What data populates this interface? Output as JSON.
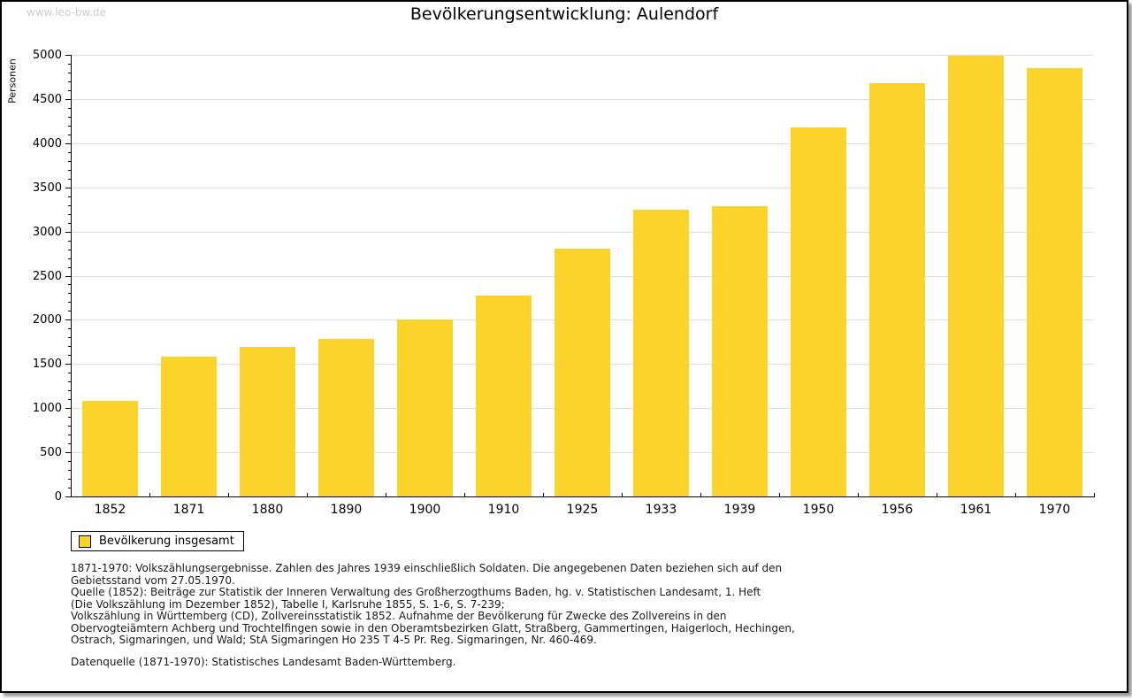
{
  "page": {
    "watermark": "www.leo-bw.de",
    "title": "Bevölkerungsentwicklung: Aulendorf"
  },
  "legend": {
    "label": "Bevölkerung insgesamt",
    "swatch_color": "#fcd32a"
  },
  "colors": {
    "bar": "#fcd32a",
    "grid": "#dddddd",
    "axis": "#000000",
    "watermark": "#cccccc"
  },
  "footnotes": [
    "1871-1970: Volkszählungsergebnisse. Zahlen des Jahres 1939 einschließlich Soldaten. Die angegebenen Daten beziehen sich auf den",
    "Gebietsstand vom 27.05.1970.",
    "Quelle (1852): Beiträge zur Statistik der Inneren Verwaltung des Großherzogthums Baden, hg. v. Statistischen Landesamt, 1. Heft",
    "(Die Volkszählung im Dezember 1852), Tabelle I, Karlsruhe 1855, S. 1-6, S. 7-239;",
    "Volkszählung in Württemberg (CD), Zollvereinsstatistik 1852. Aufnahme der Bevölkerung für Zwecke des Zollvereins in den",
    "Obervogteiämtern Achberg und Trochtelfingen sowie in den Oberamtsbezirken Glatt, Straßberg, Gammertingen, Haigerloch, Hechingen,",
    "Ostrach, Sigmaringen, und Wald; StA Sigmaringen Ho 235 T 4-5 Pr. Reg. Sigmaringen, Nr. 460-469."
  ],
  "source_line": "Datenquelle (1871-1970): Statistisches Landesamt Baden-Württemberg.",
  "chart_data": {
    "type": "bar",
    "title": "Bevölkerungsentwicklung: Aulendorf",
    "xlabel": "",
    "ylabel": "Personen",
    "series_name": "Bevölkerung insgesamt",
    "categories": [
      "1852",
      "1871",
      "1880",
      "1890",
      "1900",
      "1910",
      "1925",
      "1933",
      "1939",
      "1950",
      "1956",
      "1961",
      "1970"
    ],
    "values": [
      1085,
      1585,
      1690,
      1780,
      2000,
      2270,
      2805,
      3245,
      3290,
      4175,
      4680,
      4990,
      4850
    ],
    "ylim": [
      0,
      5000
    ],
    "ytick_step": 500,
    "yminor_step": 100,
    "grid": "horizontal-major",
    "legend_position": "bottom-left",
    "bar_color": "#fcd32a"
  }
}
